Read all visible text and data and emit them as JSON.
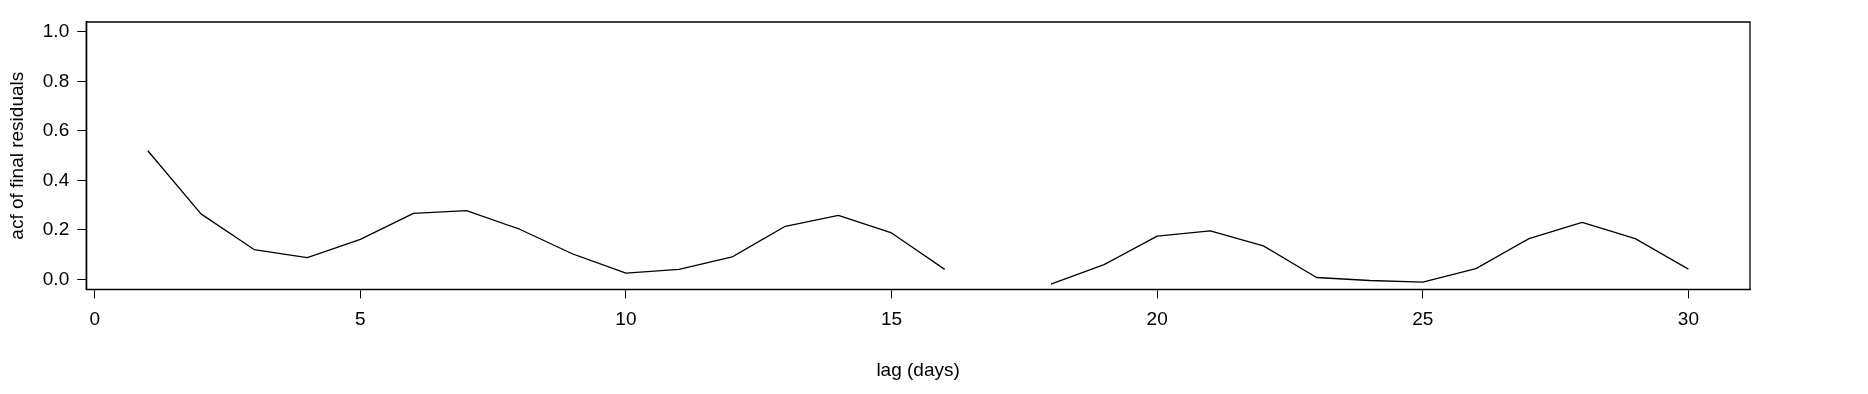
{
  "chart_data": {
    "type": "line",
    "xlabel": "lag (days)",
    "ylabel": "acf of final residuals",
    "x": [
      1,
      2,
      3,
      4,
      5,
      6,
      7,
      8,
      9,
      10,
      11,
      12,
      13,
      14,
      15,
      16,
      17,
      18,
      19,
      20,
      21,
      22,
      23,
      24,
      25,
      26,
      27,
      28,
      29,
      30
    ],
    "series": [
      {
        "color": "#000000",
        "values": [
          0.52,
          0.265,
          0.121,
          0.088,
          0.162,
          0.267,
          0.278,
          0.203,
          0.103,
          0.026,
          0.041,
          0.091,
          0.215,
          0.259,
          0.188,
          0.041,
          null,
          -0.019,
          0.06,
          0.175,
          0.196,
          0.136,
          0.008,
          -0.004,
          -0.011,
          0.044,
          0.165,
          0.231,
          0.165,
          0.042
        ]
      }
    ],
    "xlim": [
      -0.16,
      31.16
    ],
    "ylim": [
      -0.04,
      1.04
    ],
    "xticks": [
      0,
      5,
      10,
      15,
      20,
      25,
      30
    ],
    "yticks": [
      {
        "value": 0,
        "label": "0.0"
      },
      0.2,
      0.4,
      0.6,
      0.8,
      {
        "value": 1,
        "label": "1.0"
      }
    ],
    "grid": false,
    "legend": false,
    "marker": "none",
    "line_style": "solid"
  }
}
